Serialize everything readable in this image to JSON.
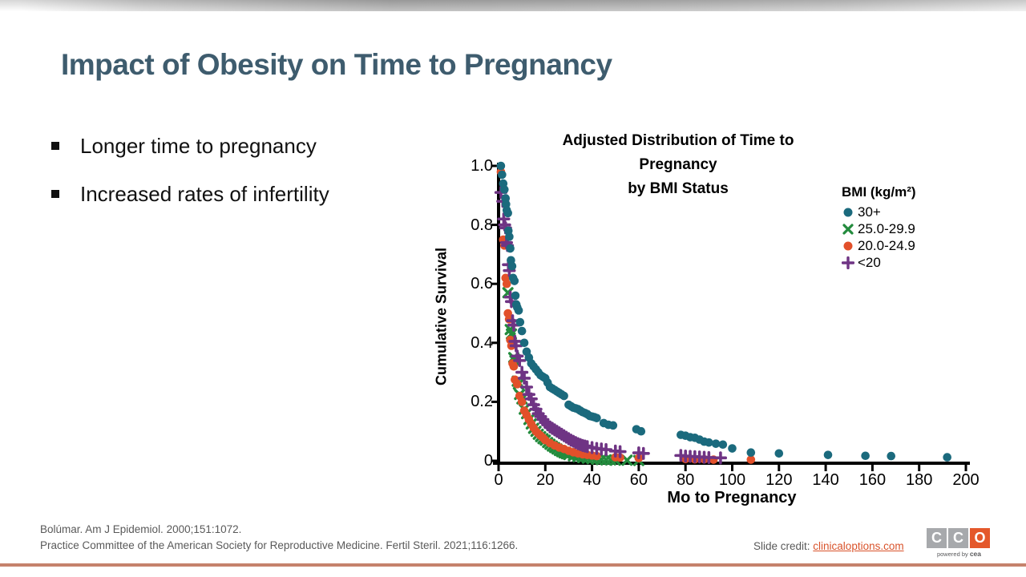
{
  "slide": {
    "title": "Impact of Obesity on Time to Pregnancy",
    "bullets": [
      "Longer time to pregnancy",
      "Increased rates of infertility"
    ]
  },
  "chart_data": {
    "type": "scatter",
    "title_lines": [
      "Adjusted Distribution of Time to",
      "Pregnancy",
      "by BMI Status"
    ],
    "xlabel": "Mo to Pregnancy",
    "ylabel": "Cumulative Survival",
    "legend_title": "BMI (kg/m²)",
    "xlim": [
      0,
      200
    ],
    "ylim": [
      0,
      1.0
    ],
    "x_ticks": [
      0,
      20,
      40,
      60,
      80,
      100,
      120,
      140,
      160,
      180,
      200
    ],
    "y_ticks": [
      {
        "v": 1.0,
        "label": "1.0"
      },
      {
        "v": 0.8,
        "label": "0.8"
      },
      {
        "v": 0.6,
        "label": "0.6"
      },
      {
        "v": 0.4,
        "label": "0.4"
      },
      {
        "v": 0.2,
        "label": "0.2"
      },
      {
        "v": 0,
        "label": "0"
      }
    ],
    "grid": false,
    "legend_position": "upper right",
    "draw_order": [
      1,
      2,
      3,
      0
    ],
    "series": [
      {
        "name": "30+",
        "key": "bmi-30plus",
        "marker": "circle",
        "color": "#1b6a7d",
        "points": [
          [
            1,
            1.0
          ],
          [
            1.5,
            0.97
          ],
          [
            2,
            0.94
          ],
          [
            2.5,
            0.92
          ],
          [
            3,
            0.89
          ],
          [
            3.2,
            0.87
          ],
          [
            3.5,
            0.85
          ],
          [
            4,
            0.84
          ],
          [
            4.2,
            0.78
          ],
          [
            4.6,
            0.76
          ],
          [
            5,
            0.72
          ],
          [
            5.3,
            0.68
          ],
          [
            5.8,
            0.66
          ],
          [
            6.2,
            0.62
          ],
          [
            6.8,
            0.61
          ],
          [
            7.2,
            0.56
          ],
          [
            7.6,
            0.53
          ],
          [
            8,
            0.52
          ],
          [
            8.6,
            0.51
          ],
          [
            9.2,
            0.47
          ],
          [
            10,
            0.44
          ],
          [
            11,
            0.4
          ],
          [
            12,
            0.37
          ],
          [
            13,
            0.35
          ],
          [
            14,
            0.33
          ],
          [
            15,
            0.32
          ],
          [
            16,
            0.31
          ],
          [
            17,
            0.3
          ],
          [
            18,
            0.29
          ],
          [
            19,
            0.285
          ],
          [
            20,
            0.28
          ],
          [
            21,
            0.265
          ],
          [
            22,
            0.25
          ],
          [
            23,
            0.245
          ],
          [
            24,
            0.24
          ],
          [
            25,
            0.235
          ],
          [
            26,
            0.23
          ],
          [
            27,
            0.225
          ],
          [
            28,
            0.22
          ],
          [
            30,
            0.19
          ],
          [
            31,
            0.185
          ],
          [
            32,
            0.18
          ],
          [
            33,
            0.178
          ],
          [
            34,
            0.175
          ],
          [
            35,
            0.17
          ],
          [
            36,
            0.165
          ],
          [
            37,
            0.162
          ],
          [
            38,
            0.158
          ],
          [
            39,
            0.152
          ],
          [
            40,
            0.15
          ],
          [
            41,
            0.148
          ],
          [
            42,
            0.145
          ],
          [
            45,
            0.128
          ],
          [
            47,
            0.122
          ],
          [
            49,
            0.12
          ],
          [
            59,
            0.107
          ],
          [
            61,
            0.1
          ],
          [
            78,
            0.088
          ],
          [
            80,
            0.085
          ],
          [
            82,
            0.08
          ],
          [
            84,
            0.078
          ],
          [
            86,
            0.072
          ],
          [
            88,
            0.065
          ],
          [
            90,
            0.062
          ],
          [
            93,
            0.058
          ],
          [
            96,
            0.055
          ],
          [
            100,
            0.042
          ],
          [
            108,
            0.028
          ],
          [
            120,
            0.025
          ],
          [
            141,
            0.02
          ],
          [
            157,
            0.017
          ],
          [
            168,
            0.016
          ],
          [
            192,
            0.012
          ]
        ]
      },
      {
        "name": "25.0-29.9",
        "key": "bmi-25-29",
        "marker": "x",
        "color": "#238b3d",
        "points": [
          [
            4,
            0.57
          ],
          [
            5,
            0.445
          ],
          [
            5.5,
            0.43
          ],
          [
            6.5,
            0.35
          ],
          [
            7,
            0.34
          ],
          [
            8,
            0.27
          ],
          [
            8.5,
            0.26
          ],
          [
            9,
            0.225
          ],
          [
            10,
            0.21
          ],
          [
            11,
            0.175
          ],
          [
            12,
            0.16
          ],
          [
            13,
            0.14
          ],
          [
            14,
            0.125
          ],
          [
            15,
            0.11
          ],
          [
            16,
            0.1
          ],
          [
            17,
            0.09
          ],
          [
            18,
            0.082
          ],
          [
            19,
            0.075
          ],
          [
            20,
            0.07
          ],
          [
            21,
            0.062
          ],
          [
            22,
            0.056
          ],
          [
            23,
            0.05
          ],
          [
            24,
            0.045
          ],
          [
            25,
            0.04
          ],
          [
            26,
            0.035
          ],
          [
            27,
            0.031
          ],
          [
            28,
            0.027
          ],
          [
            29,
            0.024
          ],
          [
            30,
            0.021
          ],
          [
            32,
            0.017
          ],
          [
            34,
            0.014
          ],
          [
            36,
            0.011
          ],
          [
            38,
            0.009
          ],
          [
            40,
            0.007
          ],
          [
            42,
            0.005
          ],
          [
            44,
            0.004
          ],
          [
            46,
            0.003
          ],
          [
            48,
            0.003
          ],
          [
            50,
            0.002
          ],
          [
            55,
            0.002
          ],
          [
            60,
            0.001
          ]
        ]
      },
      {
        "name": "20.0-24.9",
        "key": "bmi-20-24",
        "marker": "circle",
        "color": "#e2502a",
        "points": [
          [
            1,
            0.98
          ],
          [
            2,
            0.75
          ],
          [
            2.5,
            0.73
          ],
          [
            3,
            0.62
          ],
          [
            3.5,
            0.6
          ],
          [
            4,
            0.5
          ],
          [
            4.5,
            0.48
          ],
          [
            5,
            0.41
          ],
          [
            5.5,
            0.39
          ],
          [
            6,
            0.33
          ],
          [
            6.5,
            0.32
          ],
          [
            7,
            0.275
          ],
          [
            8,
            0.26
          ],
          [
            9,
            0.22
          ],
          [
            10,
            0.2
          ],
          [
            11,
            0.17
          ],
          [
            12,
            0.155
          ],
          [
            13,
            0.14
          ],
          [
            14,
            0.125
          ],
          [
            15,
            0.112
          ],
          [
            16,
            0.1
          ],
          [
            17,
            0.092
          ],
          [
            18,
            0.085
          ],
          [
            19,
            0.078
          ],
          [
            20,
            0.07
          ],
          [
            22,
            0.06
          ],
          [
            24,
            0.052
          ],
          [
            26,
            0.045
          ],
          [
            28,
            0.04
          ],
          [
            30,
            0.034
          ],
          [
            32,
            0.029
          ],
          [
            34,
            0.025
          ],
          [
            36,
            0.022
          ],
          [
            38,
            0.02
          ],
          [
            40,
            0.018
          ],
          [
            42,
            0.016
          ],
          [
            50,
            0.012
          ],
          [
            52,
            0.011
          ],
          [
            60,
            0.009
          ],
          [
            80,
            0.006
          ],
          [
            84,
            0.005
          ],
          [
            88,
            0.005
          ],
          [
            92,
            0.004
          ],
          [
            108,
            0.004
          ]
        ]
      },
      {
        "name": "<20",
        "key": "bmi-under-20",
        "marker": "plus",
        "color": "#6f3484",
        "points": [
          [
            1,
            0.91
          ],
          [
            1.8,
            0.88
          ],
          [
            2.2,
            0.82
          ],
          [
            2.6,
            0.8
          ],
          [
            3,
            0.79
          ],
          [
            3.4,
            0.74
          ],
          [
            3.8,
            0.73
          ],
          [
            4.2,
            0.665
          ],
          [
            4.6,
            0.645
          ],
          [
            5,
            0.555
          ],
          [
            5.5,
            0.54
          ],
          [
            6,
            0.475
          ],
          [
            6.5,
            0.46
          ],
          [
            7,
            0.405
          ],
          [
            7.5,
            0.39
          ],
          [
            8,
            0.355
          ],
          [
            9,
            0.34
          ],
          [
            10,
            0.3
          ],
          [
            11,
            0.28
          ],
          [
            12,
            0.25
          ],
          [
            13,
            0.225
          ],
          [
            14,
            0.21
          ],
          [
            15,
            0.19
          ],
          [
            16,
            0.175
          ],
          [
            17,
            0.16
          ],
          [
            18,
            0.15
          ],
          [
            19,
            0.14
          ],
          [
            20,
            0.13
          ],
          [
            21,
            0.122
          ],
          [
            22,
            0.115
          ],
          [
            23,
            0.11
          ],
          [
            24,
            0.105
          ],
          [
            25,
            0.1
          ],
          [
            26,
            0.095
          ],
          [
            27,
            0.09
          ],
          [
            28,
            0.085
          ],
          [
            29,
            0.08
          ],
          [
            30,
            0.075
          ],
          [
            31,
            0.07
          ],
          [
            32,
            0.066
          ],
          [
            33,
            0.062
          ],
          [
            34,
            0.058
          ],
          [
            35,
            0.055
          ],
          [
            36,
            0.052
          ],
          [
            37,
            0.05
          ],
          [
            38,
            0.048
          ],
          [
            40,
            0.045
          ],
          [
            42,
            0.042
          ],
          [
            44,
            0.04
          ],
          [
            46,
            0.038
          ],
          [
            50,
            0.033
          ],
          [
            52,
            0.031
          ],
          [
            60,
            0.027
          ],
          [
            62,
            0.025
          ],
          [
            78,
            0.018
          ],
          [
            80,
            0.016
          ],
          [
            82,
            0.015
          ],
          [
            84,
            0.014
          ],
          [
            86,
            0.013
          ],
          [
            88,
            0.012
          ],
          [
            90,
            0.011
          ],
          [
            95,
            0.01
          ]
        ]
      }
    ]
  },
  "footer": {
    "references": [
      "Bolúmar. Am J Epidemiol. 2000;151:1072.",
      "Practice Committee of the American Society for Reproductive Medicine. Fertil Steril. 2021;116:1266."
    ],
    "slide_credit_label": "Slide credit: ",
    "slide_credit_link": "clinicaloptions.com",
    "logo": {
      "letters": [
        "C",
        "C",
        "O"
      ],
      "square_colors": [
        "#a7a9ac",
        "#a7a9ac",
        "#e4582b"
      ],
      "tagline_pre": "powered by ",
      "tagline_brand": "cea"
    }
  },
  "colors": {
    "title_text": "#3e5c6e",
    "body_text": "#111111",
    "footer_text": "#595959",
    "link": "#d9532b",
    "bottom_rule": "#c5826c",
    "series_teal": "#1b6a7d",
    "series_green": "#238b3d",
    "series_orange": "#e2502a",
    "series_purple": "#6f3484"
  }
}
